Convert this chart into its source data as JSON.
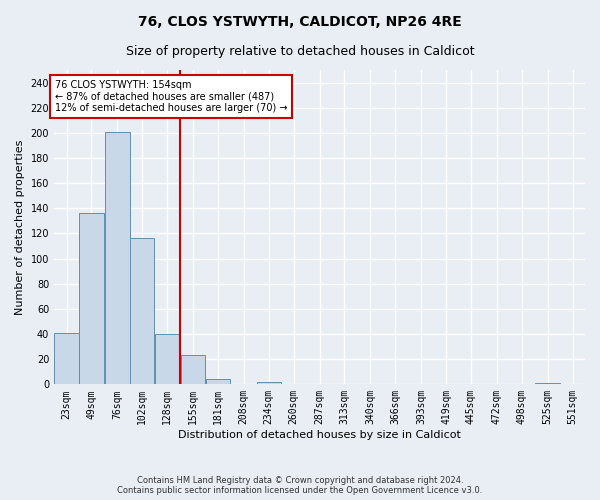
{
  "title": "76, CLOS YSTWYTH, CALDICOT, NP26 4RE",
  "subtitle": "Size of property relative to detached houses in Caldicot",
  "xlabel": "Distribution of detached houses by size in Caldicot",
  "ylabel": "Number of detached properties",
  "footer_line1": "Contains HM Land Registry data © Crown copyright and database right 2024.",
  "footer_line2": "Contains public sector information licensed under the Open Government Licence v3.0.",
  "bins": [
    23,
    49,
    76,
    102,
    128,
    155,
    181,
    208,
    234,
    260,
    287,
    313,
    340,
    366,
    393,
    419,
    445,
    472,
    498,
    525,
    551
  ],
  "bin_labels": [
    "23sqm",
    "49sqm",
    "76sqm",
    "102sqm",
    "128sqm",
    "155sqm",
    "181sqm",
    "208sqm",
    "234sqm",
    "260sqm",
    "287sqm",
    "313sqm",
    "340sqm",
    "366sqm",
    "393sqm",
    "419sqm",
    "445sqm",
    "472sqm",
    "498sqm",
    "525sqm",
    "551sqm"
  ],
  "values": [
    41,
    136,
    201,
    116,
    40,
    23,
    4,
    0,
    2,
    0,
    0,
    0,
    0,
    0,
    0,
    0,
    0,
    0,
    0,
    1
  ],
  "bar_color": "#c8d8e8",
  "bar_edge_color": "#6090b0",
  "property_line_x": 154,
  "property_line_color": "#cc0000",
  "annotation_text_line1": "76 CLOS YSTWYTH: 154sqm",
  "annotation_text_line2": "← 87% of detached houses are smaller (487)",
  "annotation_text_line3": "12% of semi-detached houses are larger (70) →",
  "annotation_box_color": "#cc0000",
  "annotation_bg_color": "#ffffff",
  "ylim": [
    0,
    250
  ],
  "yticks": [
    0,
    20,
    40,
    60,
    80,
    100,
    120,
    140,
    160,
    180,
    200,
    220,
    240
  ],
  "bg_color": "#e8eef4",
  "grid_color": "#ffffff",
  "title_fontsize": 10,
  "subtitle_fontsize": 9,
  "axis_label_fontsize": 8,
  "tick_fontsize": 7
}
